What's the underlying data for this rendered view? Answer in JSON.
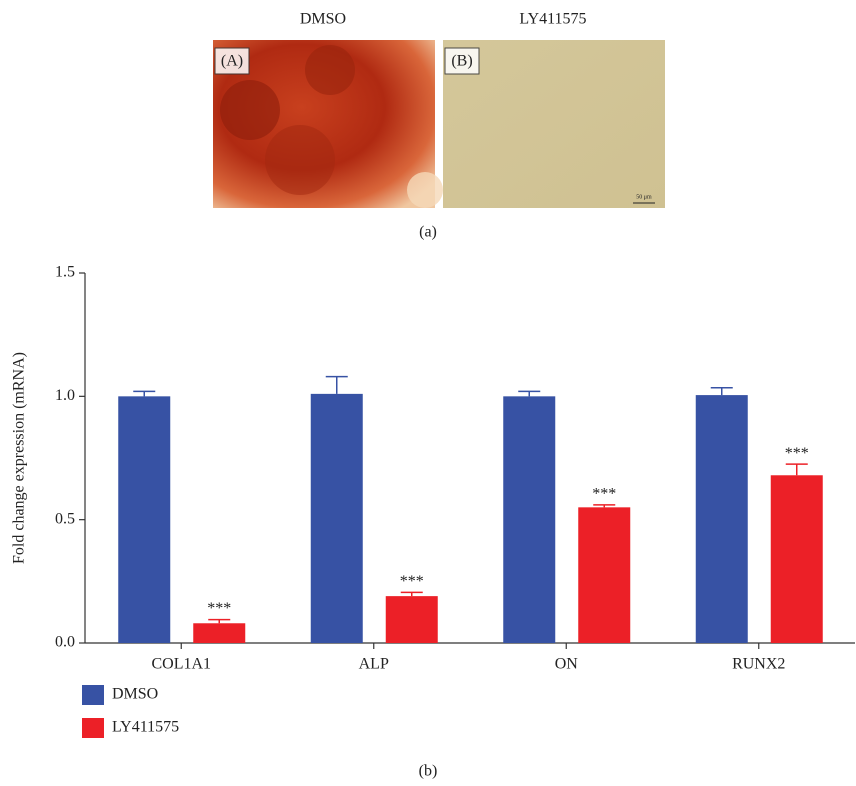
{
  "figure": {
    "panel_a": {
      "caption": "(a)",
      "images": [
        {
          "title": "DMSO",
          "label": "(A)"
        },
        {
          "title": "LY411575",
          "label": "(B)",
          "scale_bar": "50 μm"
        }
      ]
    },
    "panel_b_caption": "(b)"
  },
  "chart_data": {
    "type": "bar",
    "ylabel": "Fold change expression (mRNA)",
    "categories": [
      "COL1A1",
      "ALP",
      "ON",
      "RUNX2"
    ],
    "series": [
      {
        "name": "DMSO",
        "color": "#3752a4",
        "values": [
          1.0,
          1.01,
          1.0,
          1.005
        ],
        "errors": [
          0.02,
          0.07,
          0.02,
          0.03
        ]
      },
      {
        "name": "LY411575",
        "color": "#ec2027",
        "values": [
          0.08,
          0.19,
          0.55,
          0.68
        ],
        "errors": [
          0.015,
          0.015,
          0.01,
          0.045
        ],
        "significance": [
          "***",
          "***",
          "***",
          "***"
        ]
      }
    ],
    "ylim": [
      0,
      1.5
    ],
    "yticks": [
      {
        "value": 0,
        "label": "0.0"
      },
      0.5,
      {
        "value": 1,
        "label": "1.0"
      },
      1.5
    ],
    "legend": "bottom-left"
  }
}
